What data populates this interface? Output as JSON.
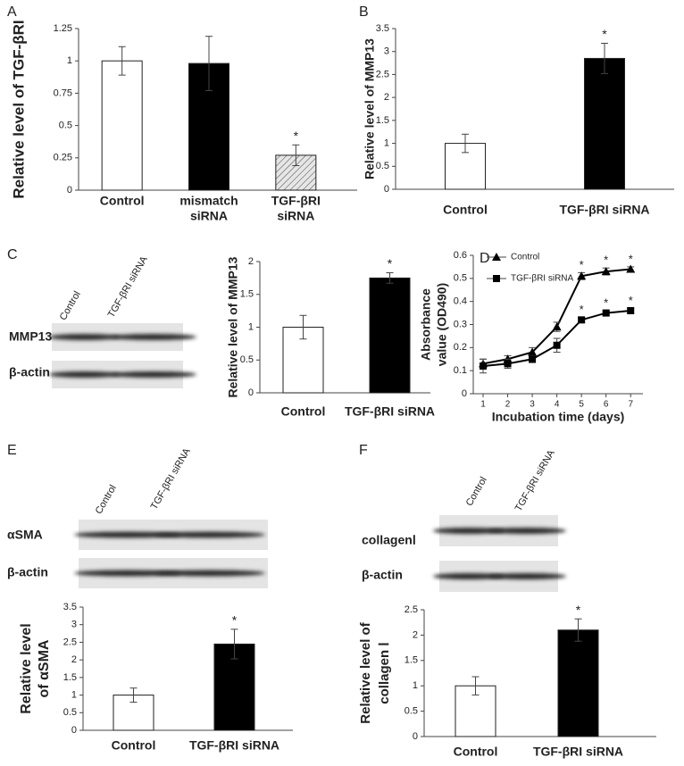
{
  "chart_data": [
    {
      "type": "bar",
      "panel": "A",
      "ylabel": [
        "Relative level of TGF-βRI"
      ],
      "categories": [
        "Control",
        [
          "mismatch",
          "siRNA"
        ],
        [
          "TGF-βRI",
          "siRNA"
        ]
      ],
      "values": [
        1.0,
        0.98,
        0.27
      ],
      "errors": [
        0.11,
        0.21,
        0.08
      ],
      "colors": [
        "#ffffff",
        "#000000",
        "#d9d9d9"
      ],
      "hatched": [
        false,
        false,
        true
      ],
      "significance": [
        null,
        null,
        "*"
      ],
      "ylim": [
        0,
        1.25
      ],
      "yticks": [
        0,
        0.25,
        0.5,
        0.75,
        1,
        1.25
      ],
      "grid": false
    },
    {
      "type": "bar",
      "panel": "B",
      "ylabel": [
        "Relative level of MMP13"
      ],
      "categories": [
        "Control",
        "TGF-βRI siRNA"
      ],
      "values": [
        1.0,
        2.85
      ],
      "errors": [
        0.2,
        0.33
      ],
      "colors": [
        "#ffffff",
        "#000000"
      ],
      "hatched": [
        false,
        false
      ],
      "significance": [
        null,
        "*"
      ],
      "ylim": [
        0,
        3.5
      ],
      "yticks": [
        0,
        0.5,
        1,
        1.5,
        2,
        2.5,
        3,
        3.5
      ],
      "grid": false
    },
    {
      "type": "bar",
      "panel": "C",
      "ylabel": [
        "Relative level of MMP13"
      ],
      "categories": [
        "Control",
        "TGF-βRI siRNA"
      ],
      "values": [
        1.0,
        1.75
      ],
      "errors": [
        0.18,
        0.08
      ],
      "colors": [
        "#ffffff",
        "#000000"
      ],
      "hatched": [
        false,
        false
      ],
      "significance": [
        null,
        "*"
      ],
      "ylim": [
        0,
        2
      ],
      "yticks": [
        0,
        0.5,
        1,
        1.5,
        2
      ],
      "grid": false
    },
    {
      "type": "line",
      "panel": "D",
      "ylabel": [
        "Absorbance",
        "value (OD490)"
      ],
      "xlabel": "Incubation time (days)",
      "x": [
        1,
        2,
        3,
        4,
        5,
        6,
        7
      ],
      "series": [
        {
          "name": "Control",
          "color": "#000000",
          "marker": "triangle",
          "values": [
            0.13,
            0.15,
            0.18,
            0.29,
            0.51,
            0.53,
            0.54
          ],
          "errors": [
            0.02,
            0.015,
            0.02,
            0.02,
            0.015,
            0.015,
            0.01
          ],
          "significance": [
            null,
            null,
            null,
            null,
            "*",
            "*",
            "*"
          ]
        },
        {
          "name": "TGF-βRI siRNA",
          "color": "#000000",
          "marker": "square",
          "values": [
            0.12,
            0.13,
            0.15,
            0.21,
            0.32,
            0.35,
            0.36
          ],
          "errors": [
            0.03,
            0.02,
            0.015,
            0.03,
            0.01,
            0.01,
            0.01
          ],
          "significance": [
            null,
            null,
            null,
            null,
            "*",
            "*",
            "*"
          ]
        }
      ],
      "xlim": [
        0.6,
        7.5
      ],
      "xticks": [
        1,
        2,
        3,
        4,
        5,
        6,
        7
      ],
      "ylim": [
        0,
        0.6
      ],
      "yticks": [
        0,
        0.1,
        0.2,
        0.3,
        0.4,
        0.5,
        0.6
      ],
      "legend": "upper left",
      "grid": false
    },
    {
      "type": "bar",
      "panel": "E",
      "ylabel": [
        "Relative level",
        "of αSMA"
      ],
      "categories": [
        "Control",
        "TGF-βRI siRNA"
      ],
      "values": [
        1.0,
        2.45
      ],
      "errors": [
        0.2,
        0.42
      ],
      "colors": [
        "#ffffff",
        "#000000"
      ],
      "hatched": [
        false,
        false
      ],
      "significance": [
        null,
        "*"
      ],
      "ylim": [
        0,
        3.5
      ],
      "yticks": [
        0,
        0.5,
        1,
        1.5,
        2,
        2.5,
        3,
        3.5
      ],
      "grid": false
    },
    {
      "type": "bar",
      "panel": "F",
      "ylabel": [
        "Relative level of",
        "collagen Ⅰ"
      ],
      "categories": [
        "Control",
        "TGF-βRI siRNA"
      ],
      "values": [
        1.0,
        2.1
      ],
      "errors": [
        0.18,
        0.22
      ],
      "colors": [
        "#ffffff",
        "#000000"
      ],
      "hatched": [
        false,
        false
      ],
      "significance": [
        null,
        "*"
      ],
      "ylim": [
        0,
        2.5
      ],
      "yticks": [
        0,
        0.5,
        1,
        1.5,
        2,
        2.5
      ],
      "grid": false
    }
  ],
  "blots": [
    {
      "lanes": [
        "Control",
        "TGF-βRI siRNA"
      ],
      "rows": [
        "MMP13",
        "β-actin"
      ]
    },
    {
      "lanes": [
        "Control",
        "TGF-βRI siRNA"
      ],
      "rows": [
        "αSMA",
        "β-actin"
      ]
    },
    {
      "lanes": [
        "Control",
        "TGF-βRI siRNA"
      ],
      "rows": [
        "collagenⅠ",
        "β-actin"
      ]
    }
  ]
}
